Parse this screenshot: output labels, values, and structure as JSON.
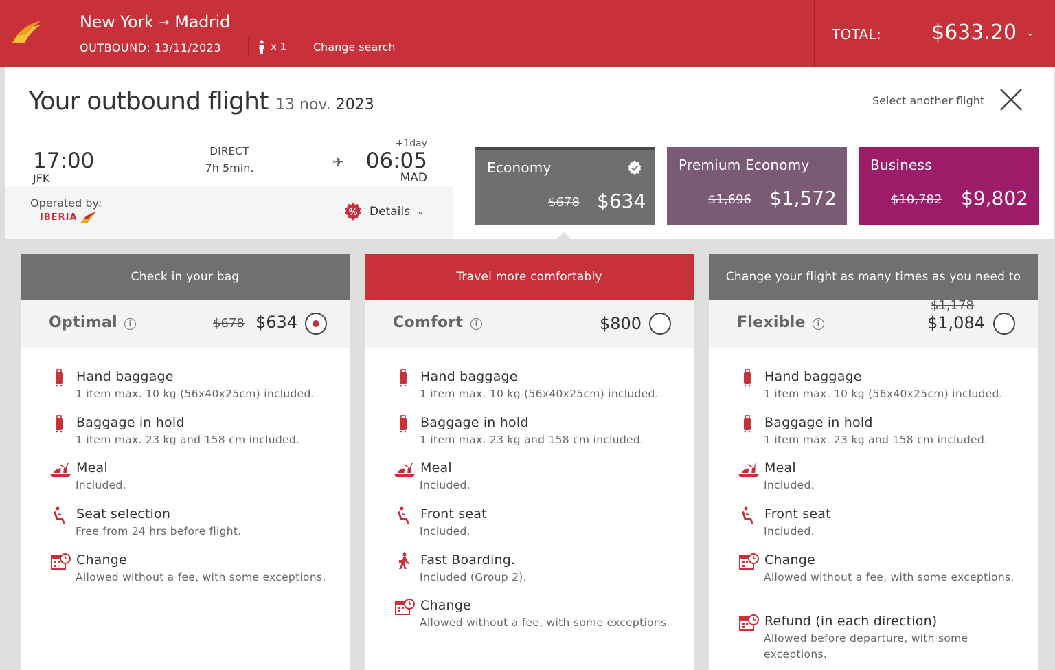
{
  "header": {
    "origin": "New York",
    "destination": "Madrid",
    "outbound": "OUTBOUND: 13/11/2023",
    "passengers": "x 1",
    "change_search": "Change search",
    "total_label": "TOTAL:",
    "total_value": "$633.20"
  },
  "flight": {
    "title": "Your outbound flight",
    "date_day": "13 nov.",
    "date_year": "2023",
    "select_another": "Select another flight",
    "dep_time": "17:00",
    "dep_code": "JFK",
    "stops": "DIRECT",
    "duration": "7h 5min.",
    "plus_day": "+1day",
    "arr_time": "06:05",
    "arr_code": "MAD",
    "operated_by": "Operated by:",
    "operator": "IBERIA",
    "details": "Details"
  },
  "fares": [
    {
      "name": "Economy",
      "old": "$678",
      "price": "$634",
      "color": "#6f6f6f"
    },
    {
      "name": "Premium Economy",
      "old": "$1,696",
      "price": "$1,572",
      "color": "#7a5a74"
    },
    {
      "name": "Business",
      "old": "$10,782",
      "price": "$9,802",
      "color": "#9c1c6a"
    }
  ],
  "cards": [
    {
      "headline": "Check in your bag",
      "name": "Optimal",
      "old": "$678",
      "price": "$634",
      "selected": true,
      "features": [
        {
          "icon": "suitcase-icon",
          "title": "Hand baggage",
          "desc": "1 item max. 10 kg (56x40x25cm) included."
        },
        {
          "icon": "suitcase-icon",
          "title": "Baggage in hold",
          "desc": "1 item max. 23 kg and 158 cm included."
        },
        {
          "icon": "meal-tray-icon",
          "title": "Meal",
          "desc": "Included."
        },
        {
          "icon": "seat-icon",
          "title": "Seat selection",
          "desc": "Free from 24 hrs before flight."
        },
        {
          "icon": "calendar-clock-icon",
          "title": "Change",
          "desc": "Allowed without a fee, with some exceptions."
        }
      ]
    },
    {
      "headline": "Travel more comfortably",
      "name": "Comfort",
      "old": "",
      "price": "$800",
      "selected": false,
      "features": [
        {
          "icon": "suitcase-icon",
          "title": "Hand baggage",
          "desc": "1 item max. 10 kg (56x40x25cm) included."
        },
        {
          "icon": "suitcase-icon",
          "title": "Baggage in hold",
          "desc": "1 item max. 23 kg and 158 cm included."
        },
        {
          "icon": "meal-tray-icon",
          "title": "Meal",
          "desc": "Included."
        },
        {
          "icon": "seat-icon",
          "title": "Front seat",
          "desc": "Included."
        },
        {
          "icon": "walking-person-icon",
          "title": "Fast Boarding.",
          "desc": "Included (Group 2)."
        },
        {
          "icon": "calendar-clock-icon",
          "title": "Change",
          "desc": "Allowed without a fee, with some exceptions."
        }
      ]
    },
    {
      "headline": "Change your flight as many times as you need to",
      "name": "Flexible",
      "old": "$1,178",
      "price": "$1,084",
      "selected": false,
      "features": [
        {
          "icon": "suitcase-icon",
          "title": "Hand baggage",
          "desc": "1 item max. 10 kg (56x40x25cm) included."
        },
        {
          "icon": "suitcase-icon",
          "title": "Baggage in hold",
          "desc": "1 item max. 23 kg and 158 cm included."
        },
        {
          "icon": "meal-tray-icon",
          "title": "Meal",
          "desc": "Included."
        },
        {
          "icon": "seat-icon",
          "title": "Front seat",
          "desc": "Included."
        },
        {
          "icon": "calendar-clock-icon",
          "title": "Change",
          "desc": "Allowed without a fee, with some exceptions."
        },
        {
          "icon": "calendar-clock-icon",
          "title": "Refund (in each direction)",
          "desc": "Allowed before departure, with some exceptions."
        }
      ]
    }
  ]
}
